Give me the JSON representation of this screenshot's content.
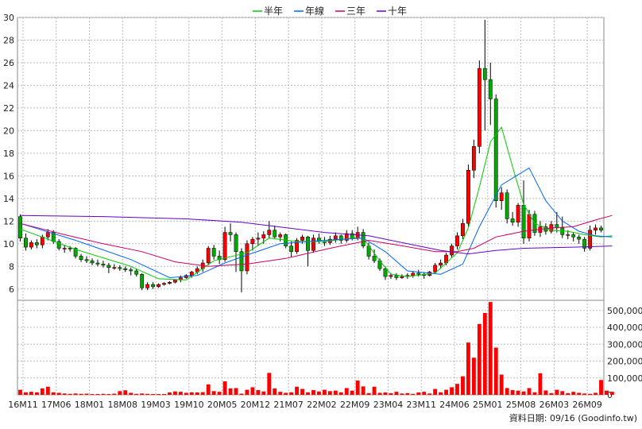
{
  "chart_data": {
    "type": "candlestick",
    "legend": [
      {
        "name": "半年",
        "color": "#00cc00"
      },
      {
        "name": "年線",
        "color": "#0066ff"
      },
      {
        "name": "三年",
        "color": "#cc0066"
      },
      {
        "name": "十年",
        "color": "#6600cc"
      }
    ],
    "legend_position": "top-center",
    "grid": true,
    "price_axis": {
      "ylim": [
        5,
        30
      ],
      "ticks": [
        6,
        8,
        10,
        12,
        14,
        16,
        18,
        20,
        22,
        24,
        26,
        28,
        30
      ]
    },
    "volume_axis": {
      "ylim": [
        0,
        560000
      ],
      "ticks": [
        0,
        100000,
        200000,
        300000,
        400000,
        500000
      ],
      "tick_labels": [
        "0",
        "100,000",
        "200,000",
        "300,000",
        "400,000",
        "500,000"
      ]
    },
    "x_ticks": [
      "16M11",
      "17M06",
      "18M01",
      "18M08",
      "19M03",
      "19M10",
      "20M05",
      "20M12",
      "21M07",
      "22M02",
      "22M09",
      "23M04",
      "23M11",
      "24M06",
      "25M01",
      "25M08",
      "26M03",
      "26M09"
    ],
    "up_color": "#ff0000",
    "down_color": "#00aa00",
    "ohlc": [
      [
        12.4,
        12.6,
        10.2,
        10.5
      ],
      [
        10.5,
        10.9,
        9.4,
        9.7
      ],
      [
        9.7,
        10.3,
        9.5,
        10.1
      ],
      [
        10.1,
        10.4,
        9.6,
        9.9
      ],
      [
        9.9,
        10.8,
        9.6,
        10.6
      ],
      [
        10.6,
        11.3,
        10.3,
        11.0
      ],
      [
        11.0,
        11.2,
        10.0,
        10.2
      ],
      [
        10.2,
        10.4,
        9.4,
        9.6
      ],
      [
        9.6,
        9.9,
        9.2,
        9.6
      ],
      [
        9.6,
        9.8,
        9.3,
        9.6
      ],
      [
        9.6,
        9.7,
        8.7,
        8.9
      ],
      [
        8.9,
        9.1,
        8.4,
        8.6
      ],
      [
        8.6,
        8.9,
        8.3,
        8.5
      ],
      [
        8.5,
        8.7,
        8.1,
        8.3
      ],
      [
        8.3,
        8.6,
        8.0,
        8.2
      ],
      [
        8.2,
        8.5,
        7.9,
        8.1
      ],
      [
        8.1,
        8.3,
        7.4,
        7.9
      ],
      [
        7.9,
        8.2,
        7.7,
        7.9
      ],
      [
        7.9,
        8.1,
        7.6,
        7.8
      ],
      [
        7.8,
        8.0,
        7.5,
        7.7
      ],
      [
        7.7,
        7.9,
        7.2,
        7.6
      ],
      [
        7.6,
        7.8,
        7.1,
        7.3
      ],
      [
        7.3,
        7.4,
        5.9,
        6.1
      ],
      [
        6.1,
        6.6,
        5.9,
        6.4
      ],
      [
        6.4,
        6.6,
        6.0,
        6.2
      ],
      [
        6.2,
        6.5,
        6.1,
        6.4
      ],
      [
        6.4,
        6.6,
        6.3,
        6.5
      ],
      [
        6.5,
        6.7,
        6.4,
        6.6
      ],
      [
        6.6,
        6.8,
        6.5,
        6.8
      ],
      [
        6.8,
        7.2,
        6.6,
        7.0
      ],
      [
        7.0,
        7.3,
        6.9,
        7.2
      ],
      [
        7.2,
        7.6,
        7.0,
        7.5
      ],
      [
        7.5,
        8.0,
        7.3,
        7.8
      ],
      [
        7.8,
        8.6,
        7.5,
        8.3
      ],
      [
        8.3,
        9.8,
        8.1,
        9.6
      ],
      [
        9.6,
        9.9,
        8.6,
        8.9
      ],
      [
        8.9,
        9.4,
        8.2,
        8.6
      ],
      [
        8.6,
        11.5,
        8.4,
        11.0
      ],
      [
        11.0,
        11.8,
        10.2,
        10.8
      ],
      [
        10.8,
        11.0,
        7.5,
        9.3
      ],
      [
        9.3,
        9.6,
        5.7,
        7.6
      ],
      [
        7.6,
        10.3,
        7.3,
        10.0
      ],
      [
        10.0,
        10.6,
        9.4,
        10.4
      ],
      [
        10.4,
        11.0,
        9.8,
        10.5
      ],
      [
        10.5,
        11.1,
        10.0,
        10.8
      ],
      [
        10.8,
        12.0,
        10.5,
        11.2
      ],
      [
        11.2,
        11.6,
        10.5,
        10.6
      ],
      [
        10.6,
        11.0,
        10.2,
        10.8
      ],
      [
        10.8,
        10.9,
        9.6,
        9.8
      ],
      [
        9.8,
        10.2,
        8.8,
        9.3
      ],
      [
        9.3,
        10.5,
        9.1,
        10.3
      ],
      [
        10.3,
        10.8,
        10.0,
        10.6
      ],
      [
        10.6,
        10.7,
        8.0,
        9.4
      ],
      [
        9.4,
        10.8,
        9.2,
        10.5
      ],
      [
        10.5,
        10.9,
        10.0,
        10.2
      ],
      [
        10.2,
        10.6,
        9.8,
        10.1
      ],
      [
        10.1,
        10.7,
        9.9,
        10.4
      ],
      [
        10.4,
        11.0,
        10.1,
        10.7
      ],
      [
        10.7,
        10.8,
        10.0,
        10.3
      ],
      [
        10.3,
        11.2,
        10.1,
        10.9
      ],
      [
        10.9,
        11.2,
        10.3,
        10.5
      ],
      [
        10.5,
        11.5,
        10.3,
        11.0
      ],
      [
        11.0,
        11.3,
        9.6,
        9.8
      ],
      [
        9.8,
        10.1,
        8.6,
        8.9
      ],
      [
        8.9,
        9.5,
        8.3,
        8.5
      ],
      [
        8.5,
        8.7,
        7.6,
        7.8
      ],
      [
        7.8,
        8.0,
        6.8,
        7.1
      ],
      [
        7.1,
        7.4,
        6.9,
        7.2
      ],
      [
        7.2,
        7.4,
        6.8,
        7.0
      ],
      [
        7.0,
        7.3,
        6.9,
        7.1
      ],
      [
        7.1,
        7.4,
        6.9,
        7.2
      ],
      [
        7.2,
        7.6,
        7.0,
        7.4
      ],
      [
        7.4,
        7.7,
        7.1,
        7.3
      ],
      [
        7.3,
        7.5,
        6.9,
        7.2
      ],
      [
        7.2,
        7.6,
        7.1,
        7.5
      ],
      [
        7.5,
        8.3,
        7.4,
        8.1
      ],
      [
        8.1,
        8.6,
        7.8,
        8.3
      ],
      [
        8.3,
        9.2,
        8.1,
        9.0
      ],
      [
        9.0,
        10.0,
        8.8,
        9.8
      ],
      [
        9.8,
        11.0,
        9.5,
        10.7
      ],
      [
        10.7,
        12.2,
        10.4,
        11.8
      ],
      [
        11.8,
        17.0,
        11.5,
        16.5
      ],
      [
        16.5,
        19.2,
        15.8,
        18.6
      ],
      [
        18.6,
        26.2,
        18.0,
        25.5
      ],
      [
        25.5,
        29.8,
        20.0,
        24.5
      ],
      [
        24.5,
        26.0,
        20.5,
        22.8
      ],
      [
        22.8,
        23.2,
        13.2,
        13.8
      ],
      [
        13.8,
        15.0,
        13.0,
        14.5
      ],
      [
        14.5,
        14.8,
        11.8,
        12.2
      ],
      [
        12.2,
        12.8,
        11.6,
        11.9
      ],
      [
        11.9,
        13.6,
        11.5,
        13.4
      ],
      [
        13.4,
        15.6,
        10.0,
        10.5
      ],
      [
        10.5,
        13.0,
        10.2,
        12.6
      ],
      [
        12.6,
        12.9,
        10.7,
        11.0
      ],
      [
        11.0,
        12.0,
        10.6,
        11.5
      ],
      [
        11.5,
        11.8,
        10.8,
        11.1
      ],
      [
        11.1,
        12.0,
        10.9,
        11.7
      ],
      [
        11.7,
        12.8,
        11.0,
        11.4
      ],
      [
        11.4,
        12.4,
        10.5,
        10.8
      ],
      [
        10.8,
        11.2,
        10.4,
        10.8
      ],
      [
        10.8,
        11.0,
        10.2,
        10.6
      ],
      [
        10.6,
        10.8,
        10.0,
        10.4
      ],
      [
        10.4,
        10.6,
        9.3,
        9.6
      ],
      [
        9.6,
        11.6,
        9.4,
        11.2
      ],
      [
        11.2,
        11.7,
        10.8,
        11.4
      ],
      [
        11.4,
        11.6,
        11.0,
        11.2
      ]
    ],
    "volume": [
      30000,
      15000,
      18000,
      15000,
      38000,
      48000,
      15000,
      12000,
      8000,
      6000,
      8000,
      6000,
      7000,
      5000,
      5000,
      6000,
      5000,
      7000,
      22000,
      27000,
      12000,
      6000,
      8000,
      6000,
      5000,
      5000,
      5000,
      14000,
      20000,
      18000,
      12000,
      15000,
      14000,
      16000,
      62000,
      22000,
      18000,
      80000,
      38000,
      40000,
      7000,
      30000,
      45000,
      28000,
      20000,
      130000,
      38000,
      18000,
      12000,
      15000,
      48000,
      35000,
      15000,
      28000,
      20000,
      30000,
      22000,
      25000,
      15000,
      40000,
      25000,
      85000,
      50000,
      10000,
      48000,
      12000,
      14000,
      10000,
      18000,
      8000,
      10000,
      6000,
      14000,
      18000,
      8000,
      35000,
      15000,
      30000,
      45000,
      65000,
      110000,
      310000,
      220000,
      420000,
      485000,
      550000,
      280000,
      120000,
      40000,
      28000,
      25000,
      20000,
      40000,
      15000,
      128000,
      26000,
      10000,
      30000,
      22000,
      10000,
      18000,
      12000,
      8000,
      6000,
      12000,
      88000,
      25000,
      18000
    ],
    "moving_averages": {
      "半年": [
        [
          0,
          11.3
        ],
        [
          10,
          9.5
        ],
        [
          20,
          8.0
        ],
        [
          25,
          6.9
        ],
        [
          30,
          6.8
        ],
        [
          35,
          8.5
        ],
        [
          41,
          9.2
        ],
        [
          45,
          10.5
        ],
        [
          50,
          10.2
        ],
        [
          55,
          10.2
        ],
        [
          60,
          10.5
        ],
        [
          62,
          10.5
        ],
        [
          65,
          8.5
        ],
        [
          67,
          7.3
        ],
        [
          70,
          7.1
        ],
        [
          75,
          7.4
        ],
        [
          79,
          9.2
        ],
        [
          81,
          11.4
        ],
        [
          83,
          15.0
        ],
        [
          85,
          19.0
        ],
        [
          87,
          20.3
        ],
        [
          89,
          16.8
        ],
        [
          91,
          13.5
        ],
        [
          93,
          11.8
        ],
        [
          96,
          11.2
        ],
        [
          99,
          11.1
        ],
        [
          102,
          10.8
        ],
        [
          105,
          10.6
        ],
        [
          107,
          10.7
        ]
      ],
      "年線": [
        [
          0,
          11.8
        ],
        [
          10,
          10.3
        ],
        [
          20,
          8.6
        ],
        [
          27,
          7.0
        ],
        [
          32,
          7.2
        ],
        [
          37,
          8.3
        ],
        [
          41,
          9.0
        ],
        [
          47,
          10.0
        ],
        [
          55,
          10.3
        ],
        [
          62,
          10.5
        ],
        [
          66,
          9.3
        ],
        [
          70,
          7.6
        ],
        [
          76,
          7.3
        ],
        [
          80,
          8.2
        ],
        [
          83,
          11.5
        ],
        [
          87,
          15.2
        ],
        [
          89,
          15.8
        ],
        [
          92,
          16.7
        ],
        [
          95,
          13.8
        ],
        [
          98,
          12.0
        ],
        [
          101,
          11.1
        ],
        [
          104,
          10.7
        ],
        [
          107,
          10.6
        ]
      ],
      "三年": [
        [
          0,
          11.8
        ],
        [
          8,
          10.8
        ],
        [
          15,
          10.0
        ],
        [
          22,
          9.3
        ],
        [
          28,
          8.4
        ],
        [
          34,
          8.0
        ],
        [
          41,
          8.2
        ],
        [
          48,
          8.7
        ],
        [
          56,
          9.6
        ],
        [
          63,
          10.3
        ],
        [
          68,
          9.9
        ],
        [
          75,
          9.3
        ],
        [
          79,
          9.3
        ],
        [
          82,
          9.6
        ],
        [
          86,
          10.6
        ],
        [
          91,
          11.1
        ],
        [
          96,
          11.4
        ],
        [
          100,
          11.5
        ],
        [
          104,
          12.1
        ],
        [
          107,
          12.5
        ]
      ],
      "十年": [
        [
          0,
          12.5
        ],
        [
          15,
          12.4
        ],
        [
          30,
          12.2
        ],
        [
          40,
          11.9
        ],
        [
          55,
          11.0
        ],
        [
          63,
          10.7
        ],
        [
          70,
          10.0
        ],
        [
          76,
          9.4
        ],
        [
          81,
          9.1
        ],
        [
          86,
          9.4
        ],
        [
          91,
          9.6
        ],
        [
          100,
          9.7
        ],
        [
          107,
          9.8
        ]
      ]
    }
  },
  "footer": {
    "label": "資料日期: 09/16",
    "source": "(Goodinfo.tw)"
  }
}
